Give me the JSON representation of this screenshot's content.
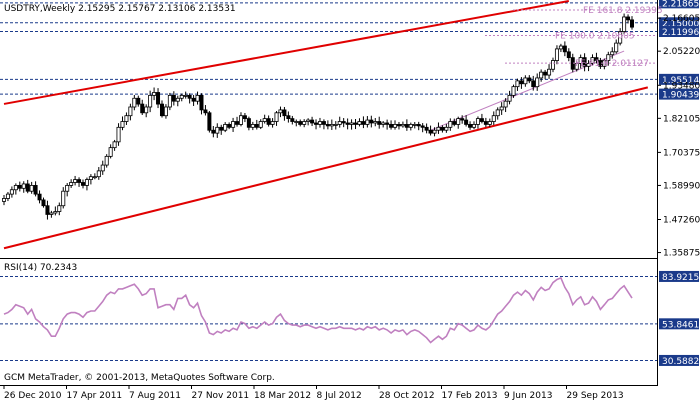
{
  "chart_title": "USDTRY,Weekly  2.15295 2.15767 2.13106 2.13531",
  "rsi_label": "RSI(14) 70.2343",
  "copyright": "GCM MetaTrader, © 2001-2013, MetaQuotes Software Corp.",
  "colors": {
    "bull": "#ffffff",
    "bear": "#000000",
    "channel": "#e00000",
    "fib": "#c080c0",
    "rsi": "#c080c0",
    "hline": "#1a3a8a",
    "label_bg": "#1a3a8a"
  },
  "chart_data": [
    {
      "type": "candlestick",
      "symbol": "USDTRY",
      "timeframe": "Weekly",
      "ohlc_latest": {
        "open": 2.15295,
        "high": 2.15767,
        "low": 2.13106,
        "close": 2.13531
      },
      "ylim": [
        1.34,
        2.225
      ],
      "y_ticks": [
        1.35875,
        1.4726,
        1.5899,
        1.7037,
        1.821,
        1.9348,
        2.0522,
        2.166
      ],
      "y_tick_labels": [
        "1.35875",
        "1.47260",
        "1.58990",
        "1.70375",
        "1.82105",
        "1.93480",
        "2.05220",
        "2.16605"
      ],
      "x_tick_labels": [
        "26 Dec 2010",
        "17 Apr 2011",
        "7 Aug 2011",
        "27 Nov 2011",
        "18 Mar 2012",
        "8 Jul 2012",
        "28 Oct 2012",
        "17 Feb 2013",
        "9 Jun 2013",
        "29 Sep 2013"
      ],
      "closes": [
        1.545,
        1.56,
        1.575,
        1.59,
        1.58,
        1.595,
        1.57,
        1.59,
        1.56,
        1.54,
        1.52,
        1.49,
        1.495,
        1.5,
        1.52,
        1.57,
        1.59,
        1.6,
        1.61,
        1.6,
        1.59,
        1.61,
        1.62,
        1.62,
        1.64,
        1.66,
        1.69,
        1.72,
        1.74,
        1.79,
        1.81,
        1.83,
        1.86,
        1.89,
        1.87,
        1.84,
        1.86,
        1.9,
        1.91,
        1.87,
        1.83,
        1.86,
        1.9,
        1.88,
        1.89,
        1.9,
        1.9,
        1.89,
        1.88,
        1.9,
        1.85,
        1.84,
        1.78,
        1.77,
        1.79,
        1.78,
        1.8,
        1.79,
        1.81,
        1.8,
        1.83,
        1.82,
        1.79,
        1.8,
        1.79,
        1.81,
        1.82,
        1.8,
        1.81,
        1.84,
        1.85,
        1.83,
        1.82,
        1.81,
        1.81,
        1.8,
        1.81,
        1.815,
        1.805,
        1.8,
        1.81,
        1.8,
        1.795,
        1.8,
        1.8,
        1.81,
        1.805,
        1.8,
        1.805,
        1.8,
        1.81,
        1.8,
        1.815,
        1.805,
        1.81,
        1.8,
        1.805,
        1.8,
        1.79,
        1.8,
        1.795,
        1.8,
        1.79,
        1.8,
        1.8,
        1.795,
        1.79,
        1.78,
        1.77,
        1.78,
        1.79,
        1.78,
        1.79,
        1.81,
        1.8,
        1.82,
        1.815,
        1.8,
        1.79,
        1.8,
        1.82,
        1.81,
        1.8,
        1.81,
        1.83,
        1.85,
        1.86,
        1.88,
        1.9,
        1.93,
        1.95,
        1.94,
        1.96,
        1.95,
        1.93,
        1.96,
        1.98,
        1.97,
        1.99,
        2.02,
        2.06,
        2.07,
        2.05,
        2.03,
        1.99,
        2.01,
        2.03,
        2.0,
        2.01,
        2.03,
        2.02,
        2.0,
        2.02,
        2.04,
        2.05,
        2.08,
        2.12,
        2.17,
        2.16,
        2.135
      ],
      "channel_lines": [
        {
          "name": "upper",
          "points": [
            [
              0,
              1.8705
            ],
            [
              143,
              2.225
            ]
          ]
        },
        {
          "name": "lower",
          "points": [
            [
              0,
              1.3735
            ],
            [
              163,
              1.9275
            ]
          ]
        }
      ],
      "support_line": {
        "points": [
          [
            108,
            1.78
          ],
          [
            157,
            2.0525
          ]
        ]
      },
      "horizontal_levels": [
        {
          "value": 2.21865,
          "label": "2.21865",
          "highlight": true
        },
        {
          "value": 2.15,
          "label": "2.15000",
          "highlight": true
        },
        {
          "value": 2.11996,
          "label": "2.11996",
          "highlight": true
        },
        {
          "value": 1.95514,
          "label": "1.95514",
          "highlight": true
        },
        {
          "value": 1.90439,
          "label": "1.90439",
          "highlight": true
        }
      ],
      "fibonacci_levels": [
        {
          "value": 2.19395,
          "label": "FE 161.8 2.19395"
        },
        {
          "value": 2.10605,
          "label": "FE 100.0 2.10605"
        },
        {
          "value": 2.01127,
          "label": "FE 61.8 2.01127"
        }
      ]
    },
    {
      "type": "line",
      "indicator": "RSI(14)",
      "latest_value": 70.2343,
      "ylim": [
        15,
        95
      ],
      "levels": [
        {
          "value": 83.92157,
          "label": "83.92157"
        },
        {
          "value": 53.84615,
          "label": "53.84615"
        },
        {
          "value": 30.58824,
          "label": "30.58824"
        }
      ],
      "values": [
        60,
        61,
        63,
        66,
        65,
        64,
        60,
        63,
        57,
        55,
        52,
        50,
        46,
        46,
        51,
        57,
        60,
        61,
        61,
        60,
        58,
        61,
        62,
        62,
        65,
        68,
        72,
        74,
        73,
        76,
        76,
        77,
        78,
        79,
        76,
        72,
        73,
        76,
        76,
        64,
        65,
        66,
        66,
        63,
        70,
        70,
        72,
        66,
        64,
        67,
        59,
        55,
        48,
        47,
        49,
        48,
        50,
        49,
        51,
        50,
        55,
        54,
        51,
        52,
        51,
        53,
        55,
        53,
        54,
        58,
        60,
        56,
        54,
        53,
        53,
        52,
        53,
        53,
        52,
        51,
        52,
        51,
        50,
        51,
        51,
        52,
        51,
        51,
        51,
        50,
        51,
        50,
        52,
        51,
        52,
        50,
        51,
        50,
        48,
        50,
        49,
        50,
        47,
        49,
        50,
        49,
        47,
        45,
        42,
        44,
        46,
        44,
        46,
        51,
        50,
        54,
        53,
        51,
        49,
        50,
        53,
        51,
        50,
        52,
        56,
        60,
        62,
        65,
        68,
        72,
        74,
        72,
        75,
        73,
        69,
        74,
        77,
        75,
        76,
        80,
        82,
        83,
        77,
        73,
        66,
        69,
        71,
        66,
        67,
        71,
        68,
        63,
        66,
        69,
        70,
        73,
        76,
        78,
        74,
        70.2
      ]
    }
  ]
}
